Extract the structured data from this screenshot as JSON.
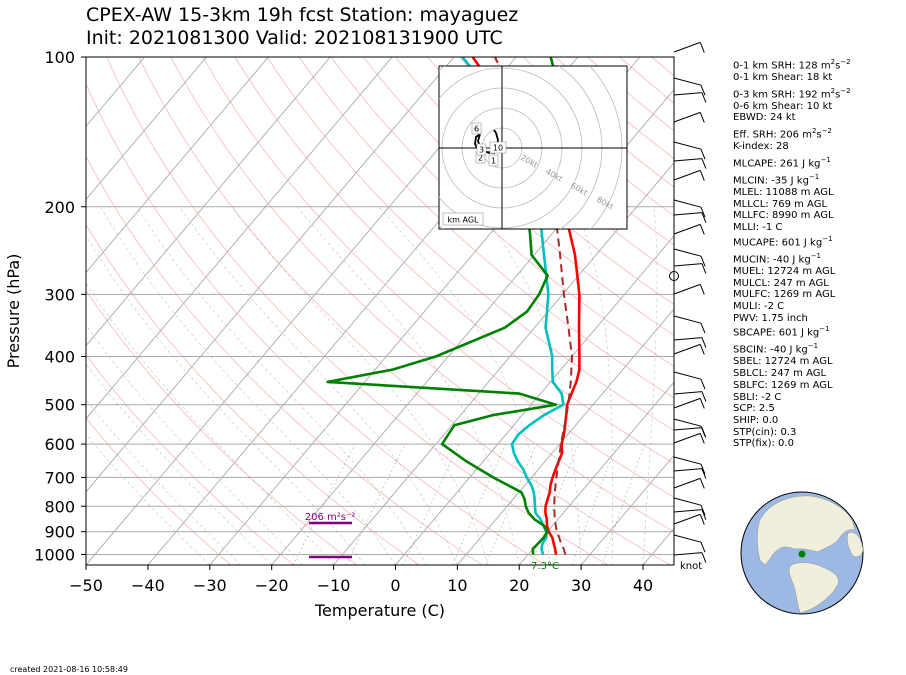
{
  "title_line1": "CPEX-AW 15-3km  19h fcst  Station: mayaguez",
  "title_line2": "Init: 2021081300  Valid: 202108131900 UTC",
  "created": "created 2021-08-16 10:58:49",
  "indices": [
    {
      "label": "0-1 km SRH: 128 m",
      "sup": "2",
      "tail": "s",
      "sup2": "−2"
    },
    {
      "label": "0-1 km Shear: 18 kt"
    },
    {
      "gap": true
    },
    {
      "label": "0-3 km SRH: 192 m",
      "sup": "2",
      "tail": "s",
      "sup2": "−2"
    },
    {
      "label": "0-6 km Shear: 10 kt"
    },
    {
      "label": "EBWD: 24 kt"
    },
    {
      "gap": true
    },
    {
      "label": "Eff. SRH: 206 m",
      "sup": "2",
      "tail": "s",
      "sup2": "−2"
    },
    {
      "label": "K-index: 28"
    },
    {
      "gap": true
    },
    {
      "label": "MLCAPE: 261 J kg",
      "sup": "−1"
    },
    {
      "gap": true
    },
    {
      "label": "MLCIN: -35 J kg",
      "sup": "−1"
    },
    {
      "label": "MLEL: 11088 m AGL"
    },
    {
      "label": "MLLCL: 769 m AGL"
    },
    {
      "label": "MLLFC: 8990 m AGL"
    },
    {
      "label": "MLLI: -1 C"
    },
    {
      "label": "MUCAPE: 601 J kg",
      "sup": "−1"
    },
    {
      "gap": true
    },
    {
      "label": "MUCIN: -40 J kg",
      "sup": "−1"
    },
    {
      "label": "MUEL: 12724 m AGL"
    },
    {
      "label": "MULCL: 247 m AGL"
    },
    {
      "label": "MULFC: 1269 m AGL"
    },
    {
      "label": "MULI: -2 C"
    },
    {
      "label": "PWV: 1.75 inch"
    },
    {
      "label": "SBCAPE: 601 J kg",
      "sup": "−1"
    },
    {
      "gap": true
    },
    {
      "label": "SBCIN: -40 J kg",
      "sup": "−1"
    },
    {
      "label": "SBEL: 12724 m AGL"
    },
    {
      "label": "SBLCL: 247 m AGL"
    },
    {
      "label": "SBLFC: 1269 m AGL"
    },
    {
      "label": "SBLI: -2 C"
    },
    {
      "label": "SCP: 2.5"
    },
    {
      "label": "SHIP: 0.0"
    },
    {
      "label": "STP(cin): 0.3"
    },
    {
      "label": "STP(fix): 0.0"
    }
  ],
  "hodograph": {
    "ring_labels": [
      "20kt",
      "40kt",
      "60kt",
      "80kt"
    ],
    "height_labels": [
      "6",
      "10",
      "2",
      "3",
      "1"
    ],
    "corner_label": "km AGL"
  },
  "srh_annotation": "206 m²s⁻²",
  "barb_unit": "knot",
  "chart_data": {
    "type": "line",
    "xlabel": "Temperature (C)",
    "ylabel": "Pressure (hPa)",
    "xlim": [
      -50,
      45
    ],
    "ylim": [
      1050,
      100
    ],
    "y_scale": "log",
    "x_ticks": [
      -50,
      -40,
      -30,
      -20,
      -10,
      0,
      10,
      20,
      30,
      40
    ],
    "y_ticks": [
      1000,
      900,
      800,
      700,
      600,
      500,
      400,
      300,
      200,
      100
    ],
    "grid": true,
    "annotations": [
      "7.3°C"
    ],
    "series": [
      {
        "color": "#ff0000",
        "points": [
          [
            1000,
            24.5
          ],
          [
            975,
            23.6
          ],
          [
            950,
            22.6
          ],
          [
            925,
            21.6
          ],
          [
            900,
            20.2
          ],
          [
            875,
            19.1
          ],
          [
            850,
            18.2
          ],
          [
            825,
            17.1
          ],
          [
            800,
            16.2
          ],
          [
            775,
            15.6
          ],
          [
            750,
            15.0
          ],
          [
            725,
            14.1
          ],
          [
            700,
            13.4
          ],
          [
            675,
            12.8
          ],
          [
            650,
            12.2
          ],
          [
            625,
            11.6
          ],
          [
            600,
            10.3
          ],
          [
            575,
            9.4
          ],
          [
            550,
            8.3
          ],
          [
            525,
            7.1
          ],
          [
            500,
            5.8
          ],
          [
            475,
            5.0
          ],
          [
            450,
            4.2
          ],
          [
            425,
            3.0
          ],
          [
            400,
            1.2
          ],
          [
            350,
            -2.8
          ],
          [
            300,
            -7.3
          ],
          [
            250,
            -13.4
          ],
          [
            200,
            -21.8
          ],
          [
            175,
            -28.2
          ],
          [
            150,
            -35.8
          ],
          [
            125,
            -45.0
          ],
          [
            100,
            -57.0
          ]
        ]
      },
      {
        "color": "#00bfbf",
        "points": [
          [
            1000,
            22.4
          ],
          [
            975,
            21.4
          ],
          [
            950,
            20.8
          ],
          [
            925,
            20.6
          ],
          [
            900,
            19.8
          ],
          [
            875,
            18.5
          ],
          [
            850,
            17.2
          ],
          [
            825,
            15.5
          ],
          [
            800,
            14.5
          ],
          [
            775,
            13.5
          ],
          [
            750,
            12.4
          ],
          [
            725,
            11.0
          ],
          [
            700,
            9.2
          ],
          [
            675,
            7.6
          ],
          [
            650,
            5.6
          ],
          [
            625,
            3.8
          ],
          [
            600,
            2.3
          ],
          [
            575,
            2.0
          ],
          [
            550,
            2.5
          ],
          [
            525,
            3.5
          ],
          [
            500,
            5.2
          ],
          [
            475,
            3.4
          ],
          [
            450,
            0.4
          ],
          [
            425,
            -1.4
          ],
          [
            400,
            -3.2
          ],
          [
            350,
            -8.2
          ],
          [
            300,
            -12.3
          ],
          [
            250,
            -18.4
          ],
          [
            200,
            -25.8
          ],
          [
            175,
            -30.5
          ],
          [
            150,
            -37.4
          ],
          [
            125,
            -45.5
          ],
          [
            100,
            -58.7
          ]
        ]
      },
      {
        "color": "#008000",
        "points": [
          [
            1000,
            20.8
          ],
          [
            975,
            20.0
          ],
          [
            950,
            20.1
          ],
          [
            925,
            20.2
          ],
          [
            900,
            20.0
          ],
          [
            875,
            18.6
          ],
          [
            850,
            16.2
          ],
          [
            825,
            14.4
          ],
          [
            800,
            13.0
          ],
          [
            775,
            11.9
          ],
          [
            750,
            10.4
          ],
          [
            700,
            3.8
          ],
          [
            650,
            -2.7
          ],
          [
            600,
            -9.0
          ],
          [
            550,
            -9.6
          ],
          [
            525,
            -4.8
          ],
          [
            500,
            4.0
          ],
          [
            475,
            -3.4
          ],
          [
            450,
            -36.0
          ],
          [
            425,
            -27.2
          ],
          [
            400,
            -22.0
          ],
          [
            350,
            -14.8
          ],
          [
            325,
            -13.4
          ],
          [
            300,
            -13.8
          ],
          [
            275,
            -15.0
          ],
          [
            250,
            -20.4
          ],
          [
            225,
            -23.8
          ],
          [
            200,
            -28.0
          ],
          [
            175,
            -31.8
          ],
          [
            150,
            -34.6
          ],
          [
            125,
            -37.8
          ],
          [
            110,
            -40.7
          ],
          [
            100,
            -44.4
          ]
        ]
      },
      {
        "color": "#a52a2a",
        "dashed": true,
        "points": [
          [
            1000,
            26.0
          ],
          [
            975,
            25.0
          ],
          [
            950,
            23.8
          ],
          [
            925,
            22.7
          ],
          [
            900,
            21.5
          ],
          [
            850,
            19.5
          ],
          [
            800,
            17.6
          ],
          [
            750,
            15.8
          ],
          [
            700,
            14.0
          ],
          [
            650,
            12.2
          ],
          [
            600,
            10.2
          ],
          [
            550,
            8.2
          ],
          [
            500,
            6.0
          ],
          [
            450,
            3.3
          ],
          [
            400,
            0.0
          ],
          [
            350,
            -4.5
          ],
          [
            300,
            -9.8
          ],
          [
            250,
            -15.8
          ],
          [
            200,
            -23.3
          ],
          [
            150,
            -35.0
          ],
          [
            125,
            -43.0
          ],
          [
            100,
            -53.4
          ]
        ]
      }
    ]
  }
}
